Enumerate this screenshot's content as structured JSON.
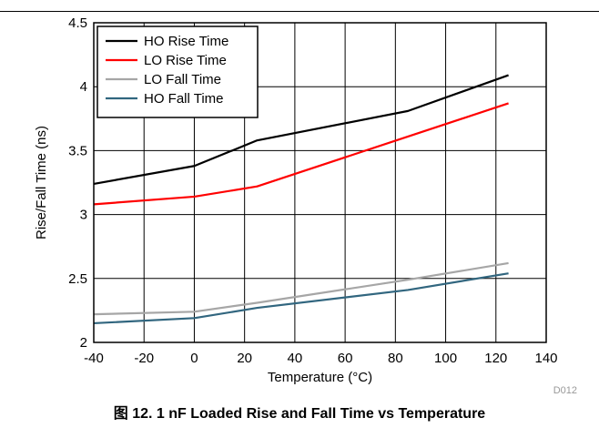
{
  "caption": "图 12. 1 nF Loaded Rise and Fall Time vs Temperature",
  "figure_id": "D012",
  "chart_data": {
    "type": "line",
    "title": "",
    "xlabel": "Temperature (°C)",
    "ylabel": "Rise/Fall Time (ns)",
    "xlim": [
      -40,
      140
    ],
    "ylim": [
      2,
      4.5
    ],
    "xticks": [
      -40,
      -20,
      0,
      20,
      40,
      60,
      80,
      100,
      120,
      140
    ],
    "yticks": [
      2,
      2.5,
      3,
      3.5,
      4,
      4.5
    ],
    "grid": true,
    "legend_position": "top-left",
    "series": [
      {
        "name": "HO Rise Time",
        "color": "#000000",
        "x": [
          -40,
          0,
          25,
          85,
          125
        ],
        "y": [
          3.24,
          3.38,
          3.58,
          3.81,
          4.09
        ]
      },
      {
        "name": "LO Rise Time",
        "color": "#ff0000",
        "x": [
          -40,
          0,
          25,
          85,
          125
        ],
        "y": [
          3.08,
          3.14,
          3.22,
          3.61,
          3.87
        ]
      },
      {
        "name": "LO Fall Time",
        "color": "#a6a6a6",
        "x": [
          -40,
          0,
          25,
          85,
          125
        ],
        "y": [
          2.22,
          2.24,
          2.31,
          2.49,
          2.62
        ]
      },
      {
        "name": "HO Fall Time",
        "color": "#31667f",
        "x": [
          -40,
          0,
          25,
          85,
          125
        ],
        "y": [
          2.15,
          2.19,
          2.27,
          2.41,
          2.54
        ]
      }
    ]
  }
}
